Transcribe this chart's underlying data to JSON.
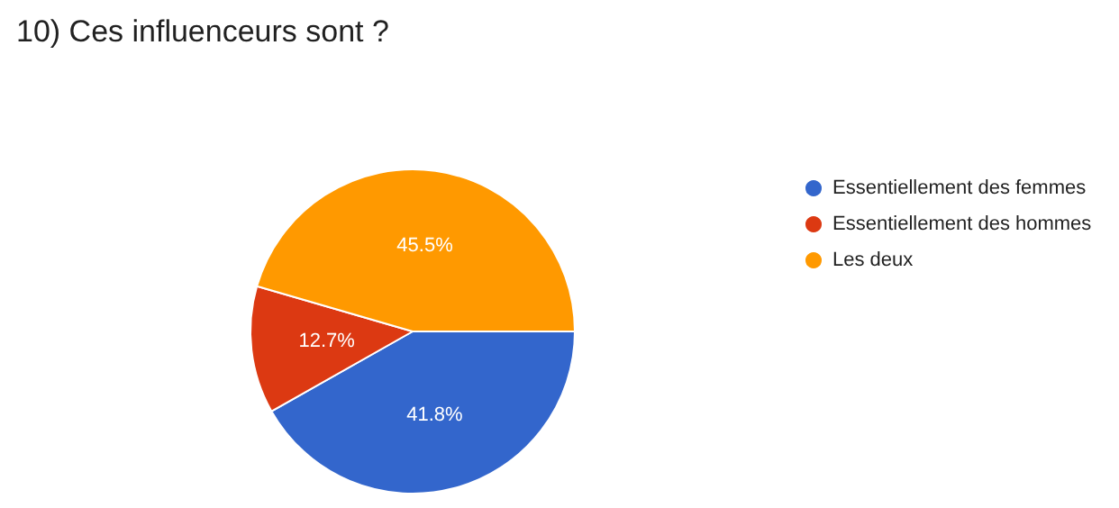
{
  "chart_data": {
    "type": "pie",
    "title": "10) Ces influenceurs sont ?",
    "categories": [
      "Essentiellement des femmes",
      "Essentiellement des hommes",
      "Les deux"
    ],
    "values": [
      41.8,
      12.7,
      45.5
    ],
    "colors": [
      "#3366cc",
      "#dc3912",
      "#ff9900"
    ],
    "value_labels": [
      "41.8%",
      "12.7%",
      "45.5%"
    ],
    "legend": "right"
  }
}
